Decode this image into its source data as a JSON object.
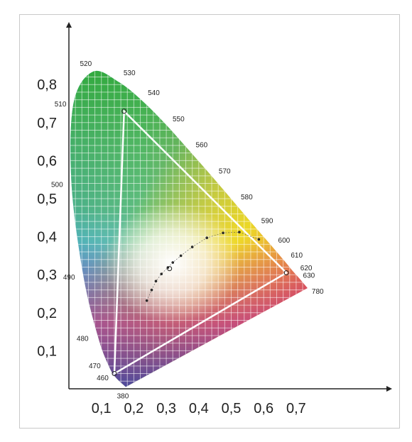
{
  "chart_data": {
    "type": "chromaticity-diagram",
    "x_ticks": [
      "0,1",
      "0,2",
      "0,3",
      "0,4",
      "0,5",
      "0,6",
      "0,7"
    ],
    "y_ticks": [
      "0,1",
      "0,2",
      "0,3",
      "0,4",
      "0,5",
      "0,6",
      "0,7",
      "0,8"
    ],
    "xlim": [
      0,
      0.75
    ],
    "ylim": [
      0,
      0.85
    ],
    "spectral_locus_labels": [
      {
        "nm": "380",
        "x": 0.175,
        "y": 0.005
      },
      {
        "nm": "460",
        "x": 0.144,
        "y": 0.03
      },
      {
        "nm": "470",
        "x": 0.124,
        "y": 0.058
      },
      {
        "nm": "480",
        "x": 0.091,
        "y": 0.133
      },
      {
        "nm": "490",
        "x": 0.045,
        "y": 0.295
      },
      {
        "nm": "500",
        "x": 0.008,
        "y": 0.538
      },
      {
        "nm": "510",
        "x": 0.014,
        "y": 0.75
      },
      {
        "nm": "520",
        "x": 0.074,
        "y": 0.834
      },
      {
        "nm": "530",
        "x": 0.155,
        "y": 0.806
      },
      {
        "nm": "540",
        "x": 0.23,
        "y": 0.754
      },
      {
        "nm": "550",
        "x": 0.302,
        "y": 0.692
      },
      {
        "nm": "560",
        "x": 0.373,
        "y": 0.624
      },
      {
        "nm": "570",
        "x": 0.444,
        "y": 0.555
      },
      {
        "nm": "580",
        "x": 0.512,
        "y": 0.487
      },
      {
        "nm": "590",
        "x": 0.575,
        "y": 0.424
      },
      {
        "nm": "600",
        "x": 0.627,
        "y": 0.373
      },
      {
        "nm": "610",
        "x": 0.666,
        "y": 0.334
      },
      {
        "nm": "620",
        "x": 0.691,
        "y": 0.308
      },
      {
        "nm": "630",
        "x": 0.708,
        "y": 0.292
      },
      {
        "nm": "780",
        "x": 0.735,
        "y": 0.265
      }
    ],
    "gamut_triangle": [
      {
        "x": 0.17,
        "y": 0.73
      },
      {
        "x": 0.67,
        "y": 0.305
      },
      {
        "x": 0.14,
        "y": 0.04
      }
    ],
    "white_point": {
      "x": 0.31,
      "y": 0.316
    },
    "planckian_locus": [
      {
        "x": 0.24,
        "y": 0.232
      },
      {
        "x": 0.255,
        "y": 0.26
      },
      {
        "x": 0.268,
        "y": 0.283
      },
      {
        "x": 0.285,
        "y": 0.302
      },
      {
        "x": 0.305,
        "y": 0.319
      },
      {
        "x": 0.32,
        "y": 0.332
      },
      {
        "x": 0.345,
        "y": 0.35
      },
      {
        "x": 0.38,
        "y": 0.373
      },
      {
        "x": 0.425,
        "y": 0.397
      },
      {
        "x": 0.475,
        "y": 0.41
      },
      {
        "x": 0.525,
        "y": 0.412
      },
      {
        "x": 0.585,
        "y": 0.393
      }
    ]
  }
}
